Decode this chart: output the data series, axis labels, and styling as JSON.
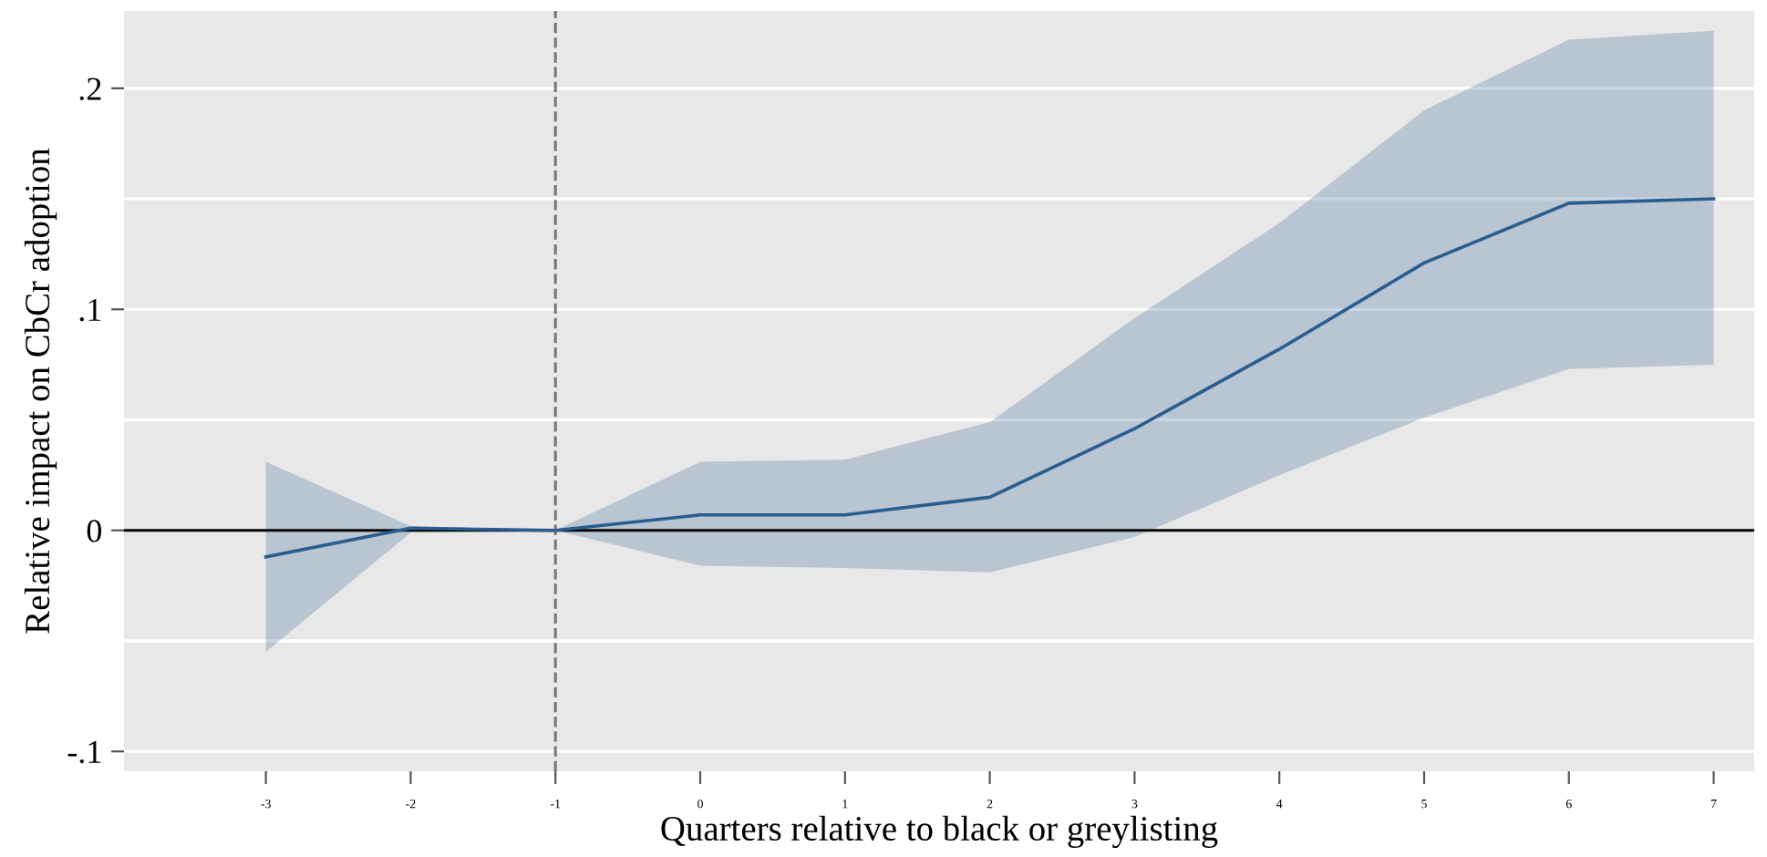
{
  "chart_data": {
    "type": "line",
    "xlabel": "Quarters relative to black or greylisting",
    "ylabel": "Relative impact on CbCr adoption",
    "x": [
      -3,
      -2,
      -1,
      0,
      1,
      2,
      3,
      4,
      5,
      6,
      7
    ],
    "series": [
      {
        "color": "#2a5d8f",
        "values": [
          -0.012,
          0.001,
          0,
          0.007,
          0.007,
          0.015,
          0.046,
          0.082,
          0.121,
          0.148,
          0.15
        ],
        "lower": [
          -0.055,
          -0.001,
          0,
          -0.016,
          -0.017,
          -0.019,
          -0.003,
          0.025,
          0.051,
          0.073,
          0.075
        ],
        "upper": [
          0.031,
          0.002,
          0,
          0.031,
          0.032,
          0.049,
          0.096,
          0.139,
          0.19,
          0.222,
          0.226
        ]
      }
    ],
    "xlim": [
      -3.98,
      7.28
    ],
    "xticks": [
      -3,
      -2,
      -1,
      0,
      1,
      2,
      3,
      4,
      5,
      6,
      7
    ],
    "ylim": [
      -0.109,
      0.235
    ],
    "yticks": [
      {
        "value": -0.1,
        "label": "-.1"
      },
      {
        "value": -0.05,
        "label": null
      },
      {
        "value": 0,
        "label": "0"
      },
      {
        "value": 0.05,
        "label": null
      },
      {
        "value": 0.1,
        "label": ".1"
      },
      {
        "value": 0.15,
        "label": null
      },
      {
        "value": 0.2,
        "label": ".2"
      }
    ],
    "grid": "y",
    "marker": "none",
    "line_style": "solid",
    "legend": false,
    "ref_lines": [
      {
        "axis": "y",
        "value": 0,
        "color": "#000000",
        "line_style": "solid"
      },
      {
        "axis": "x",
        "value": -1,
        "color": "#777777",
        "line_style": "dashed"
      }
    ]
  }
}
